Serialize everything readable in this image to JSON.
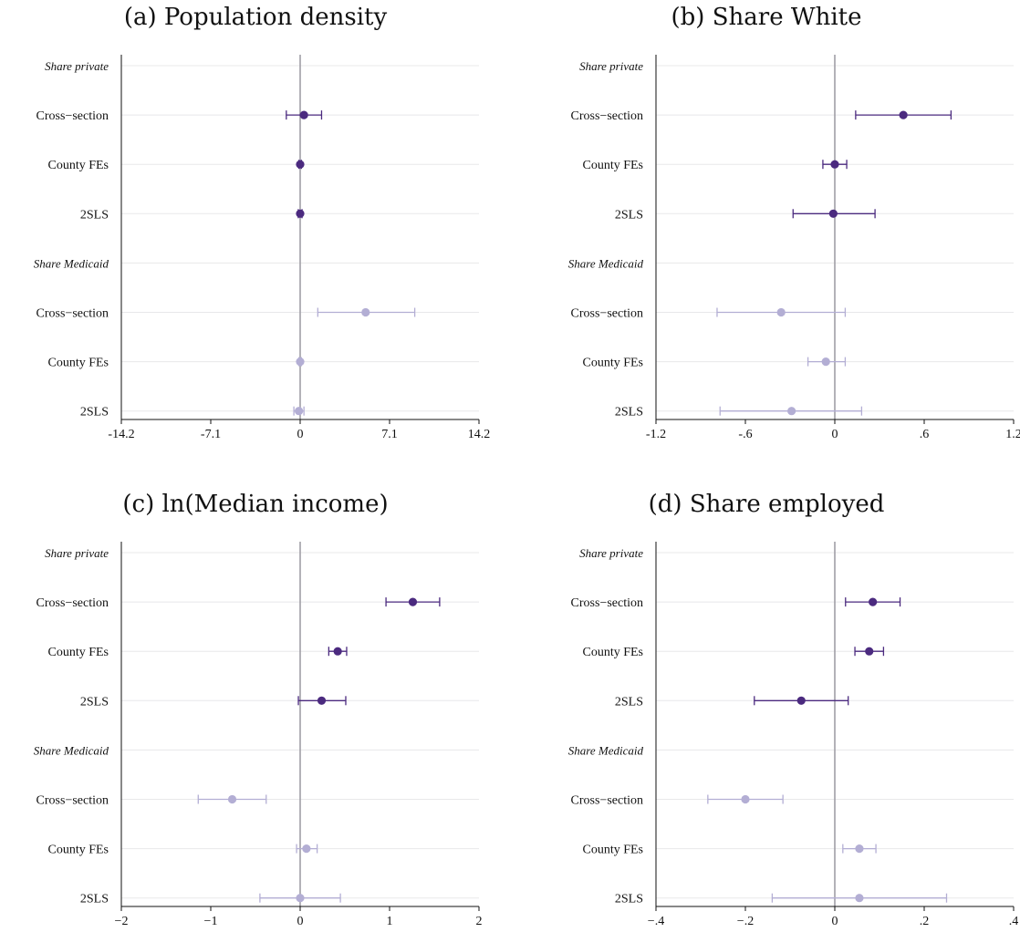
{
  "colors": {
    "private": "#4b2a7f",
    "medicaid": "#b3aed4",
    "zero_line": "#a09ea6",
    "grid": "#e8e8ea",
    "axis": "#111111"
  },
  "chart_data": [
    {
      "type": "scatter",
      "title": "(a) Population density",
      "xlim": [
        -14.2,
        14.2
      ],
      "xticks": [
        "-14.2",
        "-7.1",
        "0",
        "7.1",
        "14.2"
      ],
      "xtick_values": [
        -14.2,
        -7.1,
        0,
        7.1,
        14.2
      ],
      "rows": [
        "Share private",
        "Cross−section",
        "County FEs",
        "2SLS",
        "Share Medicaid",
        "Cross−section",
        "County FEs",
        "2SLS"
      ],
      "group_rows": [
        0,
        4
      ],
      "series": [
        {
          "name": "Share private",
          "color_key": "private",
          "rows": [
            1,
            2,
            3
          ],
          "estimates": [
            0.3,
            0.0,
            0.0
          ],
          "ci_low": [
            -1.1,
            -0.1,
            -0.15
          ],
          "ci_high": [
            1.7,
            0.1,
            0.15
          ]
        },
        {
          "name": "Share Medicaid",
          "color_key": "medicaid",
          "rows": [
            5,
            6,
            7
          ],
          "estimates": [
            5.2,
            0.0,
            -0.1
          ],
          "ci_low": [
            1.4,
            -0.1,
            -0.5
          ],
          "ci_high": [
            9.1,
            0.1,
            0.3
          ]
        }
      ]
    },
    {
      "type": "scatter",
      "title": "(b) Share White",
      "xlim": [
        -1.2,
        1.2
      ],
      "xticks": [
        "-1.2",
        "-.6",
        "0",
        ".6",
        "1.2"
      ],
      "xtick_values": [
        -1.2,
        -0.6,
        0,
        0.6,
        1.2
      ],
      "rows": [
        "Share private",
        "Cross−section",
        "County FEs",
        "2SLS",
        "Share Medicaid",
        "Cross−section",
        "County FEs",
        "2SLS"
      ],
      "group_rows": [
        0,
        4
      ],
      "series": [
        {
          "name": "Share private",
          "color_key": "private",
          "rows": [
            1,
            2,
            3
          ],
          "estimates": [
            0.46,
            0.0,
            -0.01
          ],
          "ci_low": [
            0.14,
            -0.08,
            -0.28
          ],
          "ci_high": [
            0.78,
            0.08,
            0.27
          ]
        },
        {
          "name": "Share Medicaid",
          "color_key": "medicaid",
          "rows": [
            5,
            6,
            7
          ],
          "estimates": [
            -0.36,
            -0.06,
            -0.29
          ],
          "ci_low": [
            -0.79,
            -0.18,
            -0.77
          ],
          "ci_high": [
            0.07,
            0.07,
            0.18
          ]
        }
      ]
    },
    {
      "type": "scatter",
      "title": "(c) ln(Median income)",
      "xlim": [
        -2,
        2
      ],
      "xticks": [
        "−2",
        "−1",
        "0",
        "1",
        "2"
      ],
      "xtick_values": [
        -2,
        -1,
        0,
        1,
        2
      ],
      "rows": [
        "Share private",
        "Cross−section",
        "County FEs",
        "2SLS",
        "Share Medicaid",
        "Cross−section",
        "County FEs",
        "2SLS"
      ],
      "group_rows": [
        0,
        4
      ],
      "series": [
        {
          "name": "Share private",
          "color_key": "private",
          "rows": [
            1,
            2,
            3
          ],
          "estimates": [
            1.26,
            0.42,
            0.24
          ],
          "ci_low": [
            0.96,
            0.32,
            -0.02
          ],
          "ci_high": [
            1.56,
            0.52,
            0.51
          ]
        },
        {
          "name": "Share Medicaid",
          "color_key": "medicaid",
          "rows": [
            5,
            6,
            7
          ],
          "estimates": [
            -0.76,
            0.07,
            0.0
          ],
          "ci_low": [
            -1.14,
            -0.04,
            -0.45
          ],
          "ci_high": [
            -0.38,
            0.19,
            0.45
          ]
        }
      ]
    },
    {
      "type": "scatter",
      "title": "(d) Share employed",
      "xlim": [
        -0.4,
        0.4
      ],
      "xticks": [
        "−.4",
        "−.2",
        "0",
        ".2",
        ".4"
      ],
      "xtick_values": [
        -0.4,
        -0.2,
        0,
        0.2,
        0.4
      ],
      "rows": [
        "Share private",
        "Cross−section",
        "County FEs",
        "2SLS",
        "Share Medicaid",
        "Cross−section",
        "County FEs",
        "2SLS"
      ],
      "group_rows": [
        0,
        4
      ],
      "series": [
        {
          "name": "Share private",
          "color_key": "private",
          "rows": [
            1,
            2,
            3
          ],
          "estimates": [
            0.085,
            0.077,
            -0.075
          ],
          "ci_low": [
            0.024,
            0.045,
            -0.18
          ],
          "ci_high": [
            0.146,
            0.109,
            0.03
          ]
        },
        {
          "name": "Share Medicaid",
          "color_key": "medicaid",
          "rows": [
            5,
            6,
            7
          ],
          "estimates": [
            -0.2,
            0.055,
            0.055
          ],
          "ci_low": [
            -0.284,
            0.018,
            -0.14
          ],
          "ci_high": [
            -0.116,
            0.092,
            0.25
          ]
        }
      ]
    }
  ]
}
